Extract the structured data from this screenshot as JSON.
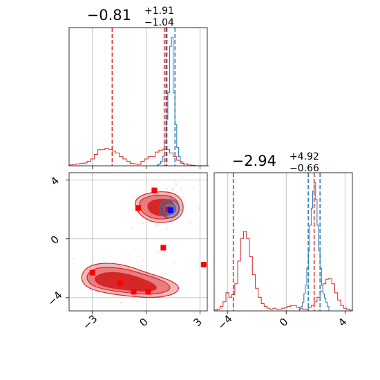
{
  "colors": {
    "red": "#d62728",
    "red_fill": "#e87d7f",
    "red_fill_light": "#f2b8b8",
    "blue": "#1f77b4",
    "blue_marker": "#0000ff",
    "grid": "#b0b0b0"
  },
  "chart_data": {
    "type": "corner",
    "panels": [
      {
        "id": "hist-param-1",
        "type": "histogram",
        "title": {
          "value": "−0.81",
          "upper": "+1.91",
          "lower": "−1.04"
        },
        "xlim": [
          -4.3,
          3.4
        ],
        "x_ticks": [
          -3,
          0,
          3
        ],
        "red_markers_x": [
          -1.9,
          1.0,
          1.15
        ],
        "blue_markers_x": [
          1.1,
          1.6
        ],
        "red_series": {
          "bin_start": -4.3,
          "bin_width": 0.2,
          "counts": [
            0.2,
            0.3,
            0.4,
            0.5,
            0.6,
            1.0,
            1.5,
            2.5,
            3.5,
            3.5,
            3.8,
            3.6,
            3.2,
            2.8,
            2.0,
            1.5,
            1.0,
            0.5,
            0.4,
            0.3,
            1.0,
            1.5,
            2.0,
            2.0,
            3.0,
            3.4,
            3.6,
            3.6,
            2.8,
            2.0,
            1.2,
            0.6,
            0.4,
            0.2,
            0.1,
            0,
            0,
            0,
            0
          ]
        },
        "blue_series": {
          "bin_start": 0.6,
          "bin_width": 0.1,
          "counts": [
            0.2,
            0.4,
            1,
            2,
            5,
            10,
            16,
            26,
            28,
            16,
            9,
            4,
            2,
            1,
            0.5
          ]
        }
      },
      {
        "id": "scatter-param-1-vs-2",
        "type": "contour-scatter",
        "xlim": [
          -4.3,
          3.4
        ],
        "ylim": [
          -4.9,
          4.5
        ],
        "x_ticks": [
          -3,
          0,
          3
        ],
        "y_ticks": [
          -4,
          0,
          4
        ],
        "red_points": [
          {
            "x": 0.45,
            "y": 3.3
          },
          {
            "x": -0.45,
            "y": 2.1
          },
          {
            "x": 1.2,
            "y": 2.0
          },
          {
            "x": 0.95,
            "y": -0.6
          },
          {
            "x": 3.2,
            "y": -1.75
          },
          {
            "x": -3.0,
            "y": -2.3
          },
          {
            "x": -1.45,
            "y": -3.0
          },
          {
            "x": -0.7,
            "y": -3.6
          },
          {
            "x": 0.1,
            "y": -3.6
          }
        ],
        "blue_points": [
          {
            "x": 1.35,
            "y": 1.95
          }
        ]
      },
      {
        "id": "hist-param-2",
        "type": "histogram",
        "title": {
          "value": "−2.94",
          "upper": "+4.92",
          "lower": "−0.66"
        },
        "xlim": [
          -4.9,
          4.5
        ],
        "x_ticks": [
          -4,
          0,
          4
        ],
        "red_markers_x": [
          -3.6,
          1.9
        ],
        "blue_markers_x": [
          1.5,
          2.3
        ],
        "red_series": {
          "bin_start": -4.9,
          "bin_width": 0.2,
          "counts": [
            0.1,
            0.2,
            0.5,
            1.0,
            2.0,
            1.5,
            1.8,
            3.0,
            5.5,
            8.0,
            8.8,
            8.0,
            6.0,
            4.0,
            2.5,
            1.5,
            0.8,
            0.5,
            0.3,
            0.2,
            0.3,
            0.2,
            0.2,
            0.3,
            0.4,
            0.5,
            0.6,
            0.6,
            0.4,
            0.3,
            0.2,
            0.2,
            0.4,
            0.6,
            1.0,
            1.5,
            2.2,
            3.0,
            3.5,
            3.6,
            3.0,
            2.0,
            1.2,
            0.6,
            0.3,
            0.2,
            0.1
          ]
        },
        "blue_series": {
          "bin_start": 0.9,
          "bin_width": 0.1,
          "counts": [
            0.2,
            0.5,
            1,
            2,
            3,
            5,
            7,
            10,
            12,
            14,
            15,
            13,
            10,
            7,
            5,
            3,
            2,
            1.5,
            1,
            0.5
          ]
        }
      }
    ]
  }
}
